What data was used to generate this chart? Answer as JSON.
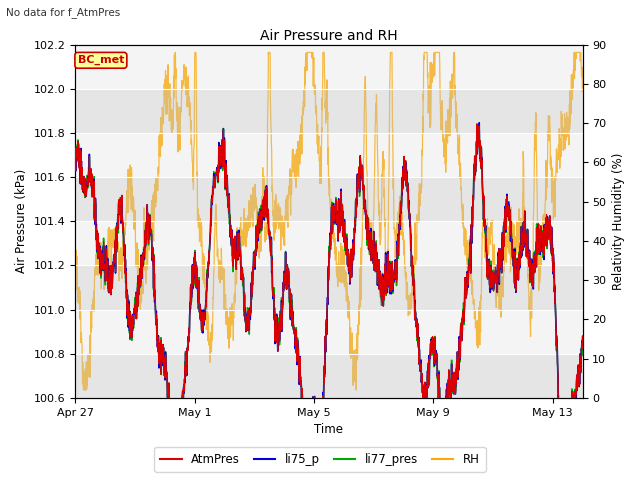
{
  "title": "Air Pressure and RH",
  "subtitle": "No data for f_AtmPres",
  "xlabel": "Time",
  "ylabel_left": "Air Pressure (kPa)",
  "ylabel_right": "Relativity Humidity (%)",
  "ylim_left": [
    100.6,
    102.2
  ],
  "ylim_right": [
    0,
    90
  ],
  "yticks_left": [
    100.6,
    100.8,
    101.0,
    101.2,
    101.4,
    101.6,
    101.8,
    102.0,
    102.2
  ],
  "yticks_right": [
    0,
    10,
    20,
    30,
    40,
    50,
    60,
    70,
    80,
    90
  ],
  "xtick_labels": [
    "Apr 27",
    "May 1",
    "May 5",
    "May 9",
    "May 13"
  ],
  "xtick_pos": [
    0,
    4,
    8,
    12,
    16
  ],
  "xlim": [
    0,
    17
  ],
  "annotation_text": "BC_met",
  "annotation_facecolor": "#ffff99",
  "annotation_edgecolor": "#cc0000",
  "bg_color": "#e8e8e8",
  "plot_bg_color": "#d8d8d8",
  "line_colors": {
    "AtmPres": "#dd0000",
    "li75_p": "#0000dd",
    "li77_pres": "#00aa00",
    "RH": "#ffaa00"
  },
  "legend_labels": [
    "AtmPres",
    "li75_p",
    "li77_pres",
    "RH"
  ],
  "figsize": [
    6.4,
    4.8
  ],
  "dpi": 100
}
